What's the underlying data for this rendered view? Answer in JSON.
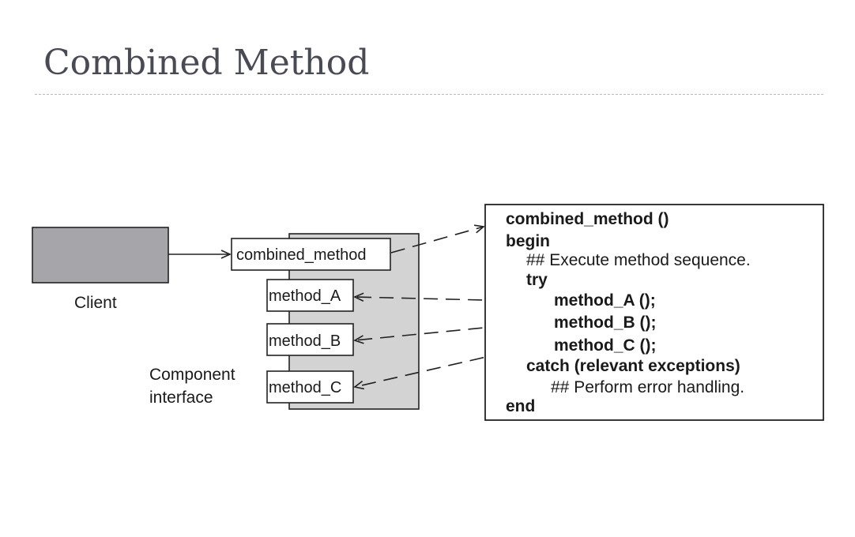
{
  "title": "Combined Method",
  "diagram": {
    "client_label": "Client",
    "component_label_line1": "Component",
    "component_label_line2": "interface",
    "interface_methods": {
      "combined": "combined_method",
      "a": "method_A",
      "b": "method_B",
      "c": "method_C"
    },
    "code_lines": [
      "combined_method ()",
      "begin",
      "## Execute method sequence.",
      "try",
      "method_A ();",
      "method_B ();",
      "method_C ();",
      "catch (relevant exceptions)",
      "## Perform error handling.",
      "end"
    ],
    "colors": {
      "client_fill": "#a6a6aa",
      "component_fill": "#d3d3d3",
      "line": "#222222",
      "title": "#4a4a54"
    }
  }
}
